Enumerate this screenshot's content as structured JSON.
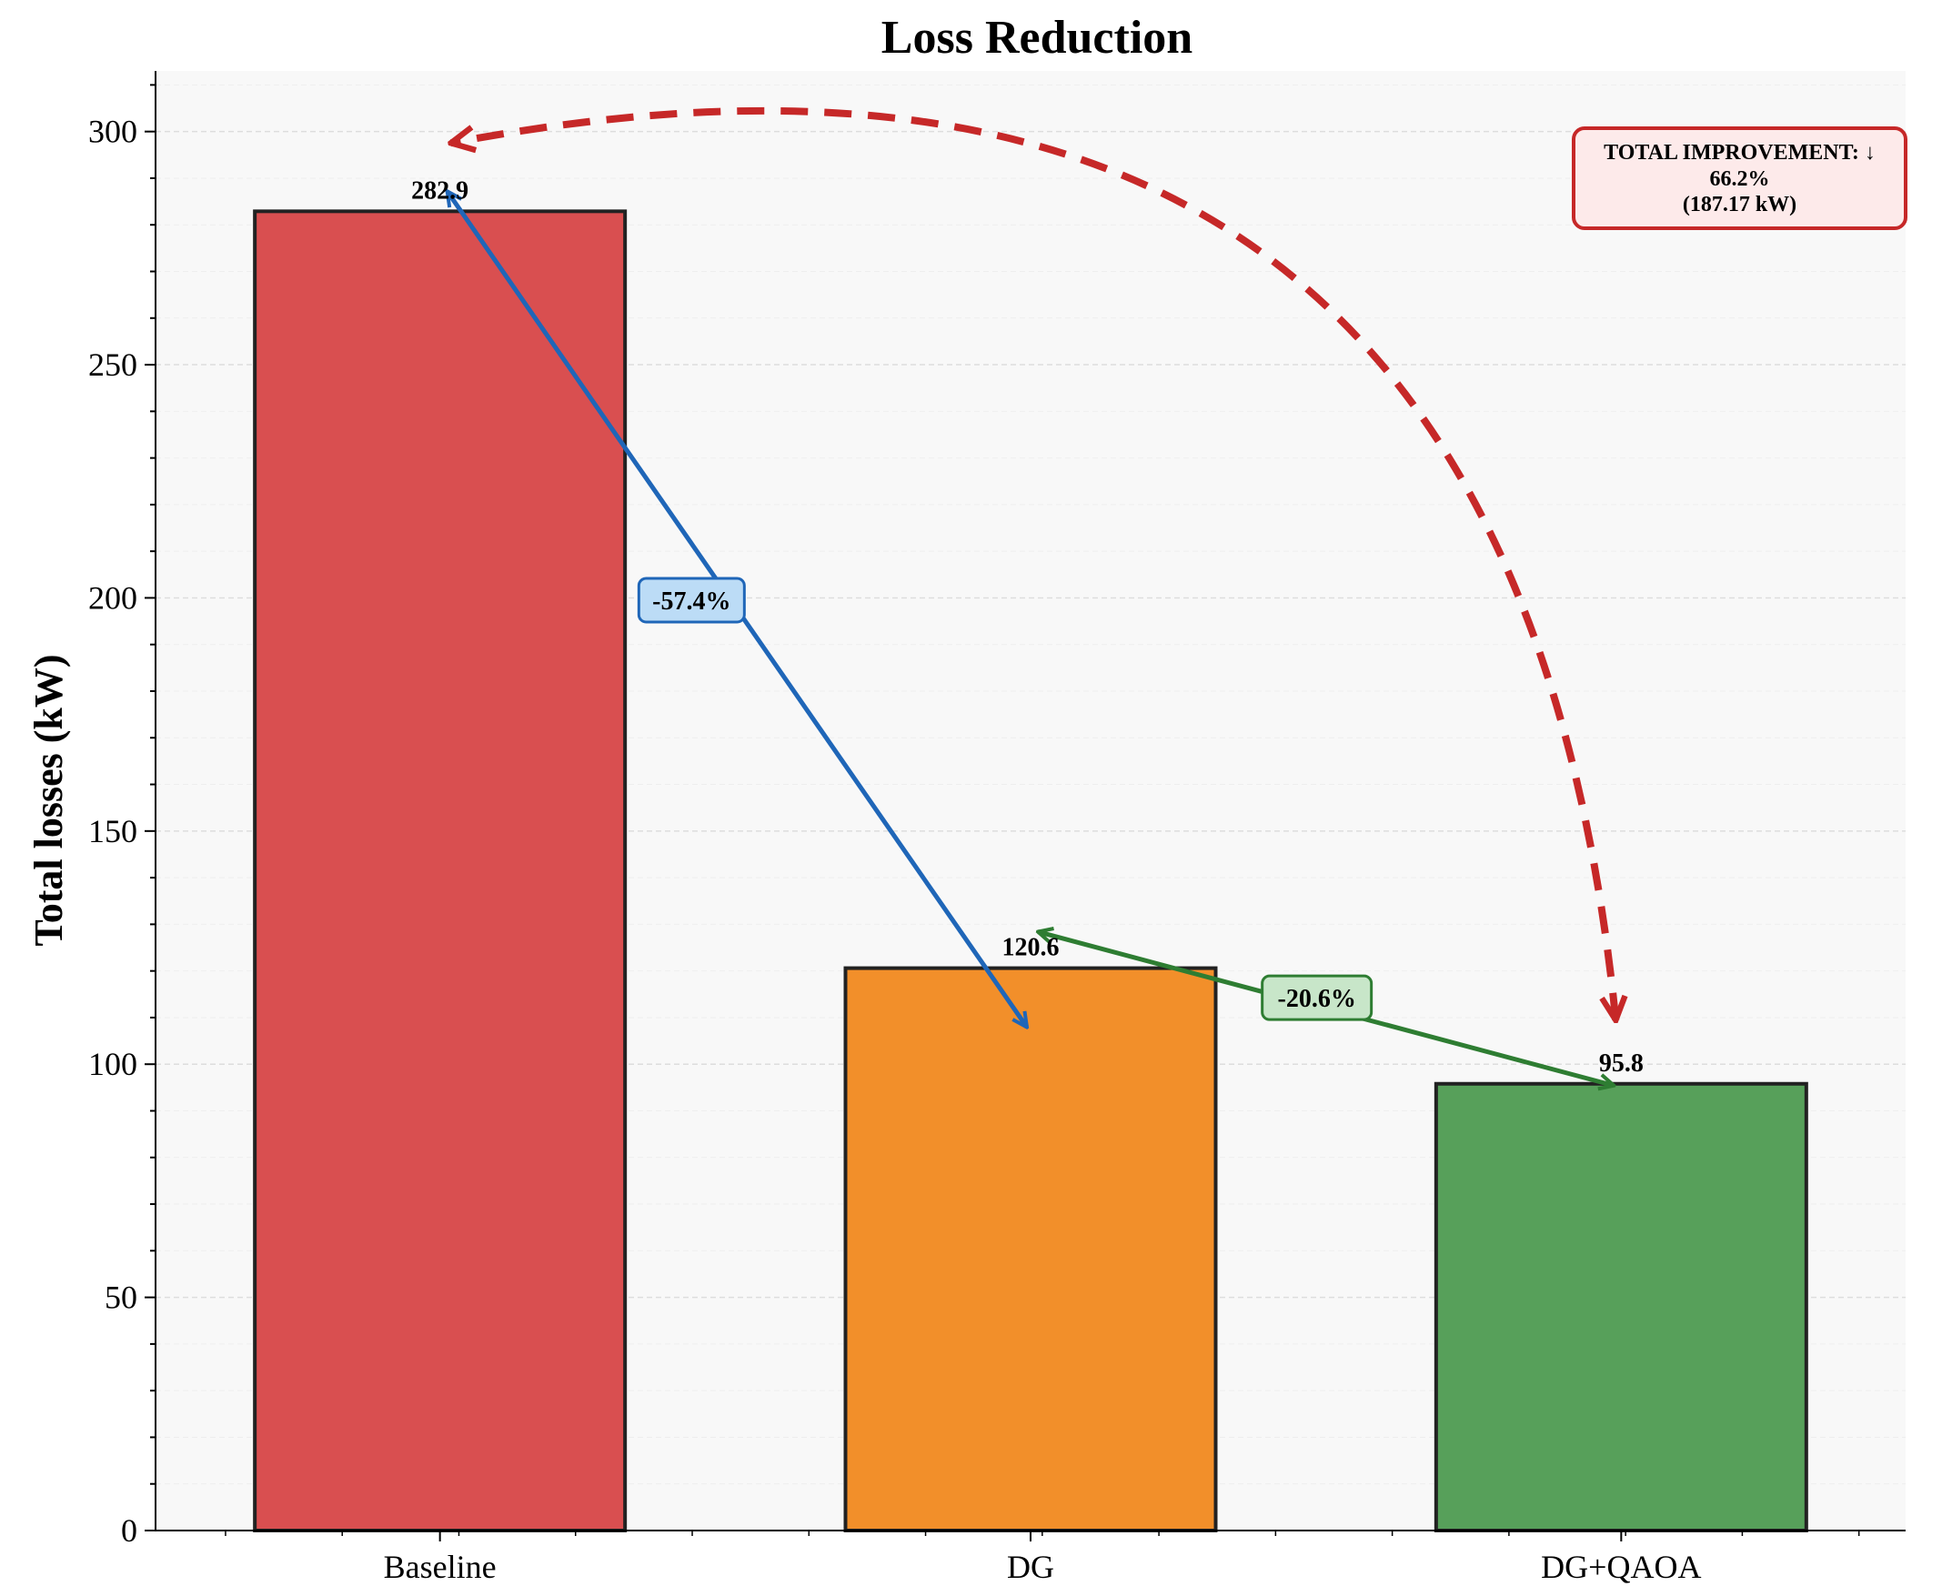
{
  "chart_data": {
    "type": "bar",
    "title": "Loss Reduction",
    "xlabel": "",
    "ylabel": "Total losses (kW)",
    "categories": [
      "Baseline",
      "DG",
      "DG+QAOA"
    ],
    "values": [
      282.9,
      120.6,
      95.8
    ],
    "value_labels": [
      "282.9",
      "120.6",
      "95.8"
    ],
    "colors": [
      "#d94f50",
      "#f28f2a",
      "#57a05a"
    ],
    "ylim": [
      0,
      313
    ],
    "yticks": [
      0,
      50,
      100,
      150,
      200,
      250,
      300
    ],
    "grid": true,
    "annotations": {
      "baseline_to_dg": {
        "label": "-57.4%",
        "color": "#1f66b8",
        "fill": "#bcdcf6"
      },
      "dg_to_qaoa": {
        "label": "-20.6%",
        "color": "#2e7d32",
        "fill": "#c8e6c9"
      },
      "total": {
        "line1": "TOTAL IMPROVEMENT: ↓",
        "line2": "66.2%",
        "line3": "(187.17 kW)",
        "color": "#c62828",
        "fill": "#fdeaea"
      }
    }
  }
}
